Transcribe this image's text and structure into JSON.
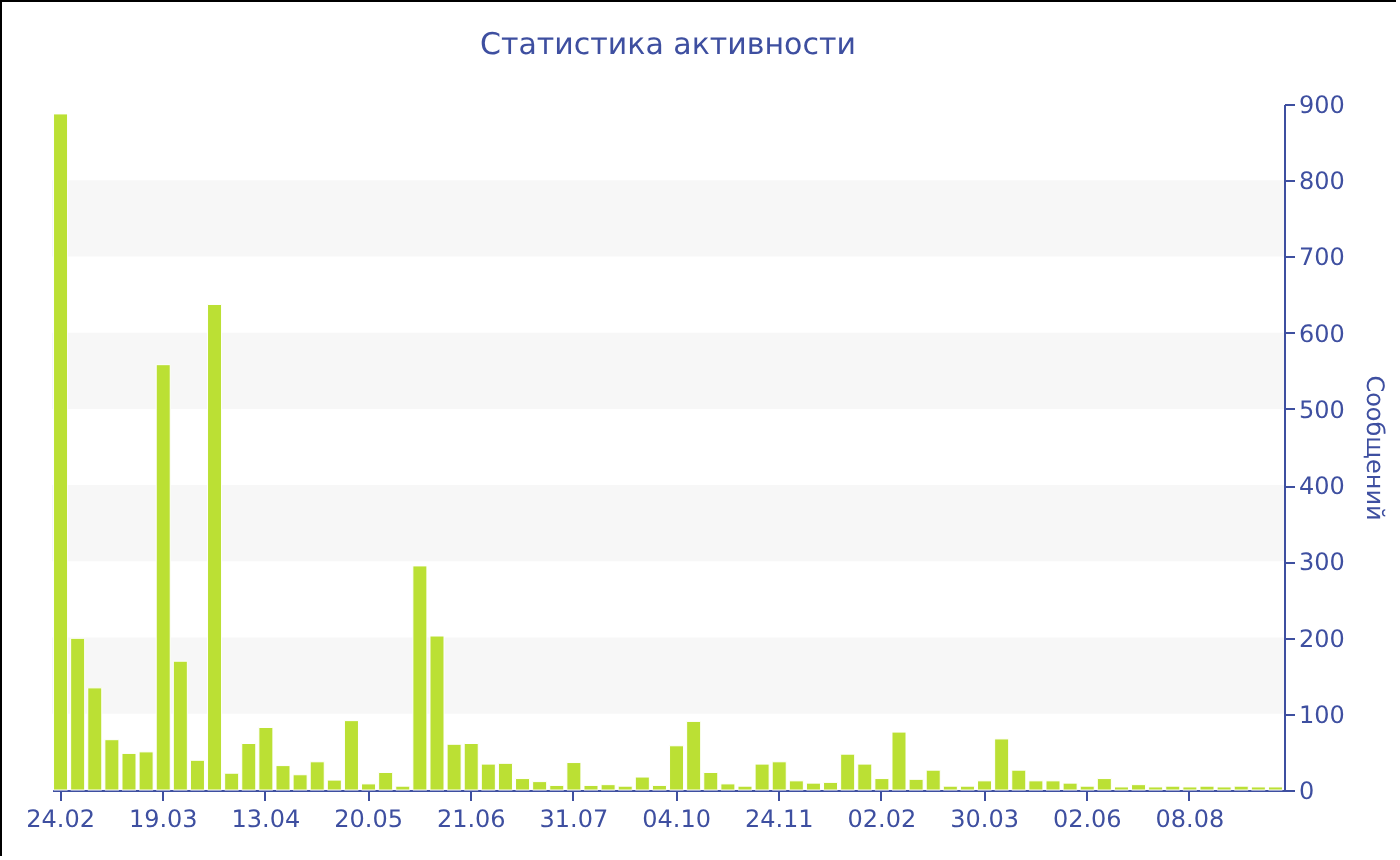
{
  "chart_data": {
    "type": "bar",
    "title": "Статистика активности",
    "ylabel": "Сообщений",
    "categories": [
      "24.02",
      null,
      null,
      null,
      null,
      null,
      "19.03",
      null,
      null,
      null,
      null,
      null,
      "13.04",
      null,
      null,
      null,
      null,
      null,
      "20.05",
      null,
      null,
      null,
      null,
      null,
      "21.06",
      null,
      null,
      null,
      null,
      null,
      "31.07",
      null,
      null,
      null,
      null,
      null,
      "04.10",
      null,
      null,
      null,
      null,
      null,
      "24.11",
      null,
      null,
      null,
      null,
      null,
      "02.02",
      null,
      null,
      null,
      null,
      null,
      "30.03",
      null,
      null,
      null,
      null,
      null,
      "02.06",
      null,
      null,
      null,
      null,
      null,
      "08.08",
      null,
      null,
      null,
      null,
      null
    ],
    "values": [
      887,
      199,
      134,
      66,
      48,
      50,
      558,
      169,
      39,
      637,
      22,
      61,
      82,
      32,
      20,
      37,
      13,
      91,
      8,
      23,
      5,
      294,
      202,
      60,
      61,
      34,
      35,
      15,
      11,
      6,
      36,
      6,
      7,
      5,
      17,
      6,
      58,
      90,
      23,
      8,
      5,
      34,
      37,
      12,
      9,
      10,
      47,
      34,
      15,
      76,
      14,
      26,
      5,
      5,
      12,
      67,
      26,
      12,
      12,
      9,
      5,
      15,
      4,
      7,
      4,
      5,
      4,
      5,
      4,
      5,
      4,
      4
    ],
    "color": "#bbe034",
    "ylim": [
      0,
      900
    ],
    "yticks": [
      0,
      100,
      200,
      300,
      400,
      500,
      600,
      700,
      800,
      900
    ],
    "bands": [
      {
        "axis": "y",
        "from": 100,
        "to": 200,
        "color": "#f7f7f7"
      },
      {
        "axis": "y",
        "from": 300,
        "to": 400,
        "color": "#f7f7f7"
      },
      {
        "axis": "y",
        "from": 500,
        "to": 600,
        "color": "#f7f7f7"
      },
      {
        "axis": "y",
        "from": 700,
        "to": 800,
        "color": "#f7f7f7"
      }
    ],
    "grid": false
  }
}
